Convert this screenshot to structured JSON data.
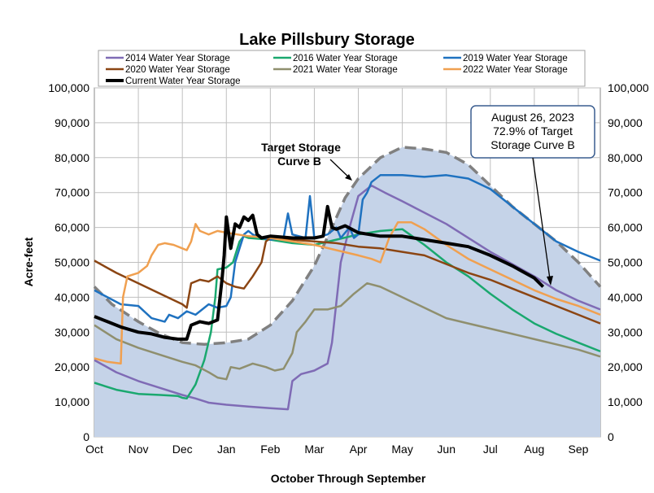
{
  "chart_data": {
    "type": "area",
    "title": "Lake Pillsbury Storage",
    "xlabel": "October Through September",
    "ylabel": "Acre-feet",
    "x_tick_labels": [
      "Oct",
      "Nov",
      "Dec",
      "Jan",
      "Feb",
      "Mar",
      "Apr",
      "May",
      "Jun",
      "Jul",
      "Aug",
      "Sep"
    ],
    "ylim": [
      0,
      100000
    ],
    "y_tick_labels": [
      "0",
      "10,000",
      "20,000",
      "30,000",
      "40,000",
      "50,000",
      "60,000",
      "70,000",
      "80,000",
      "90,000",
      "100,000"
    ],
    "grid": true,
    "legend_placement": "top",
    "colors": {
      "area_fill": "#c5d3e8",
      "target_curve": "#808080",
      "wy2014": "#7f6bb5",
      "wy2016": "#1aa86f",
      "wy2019": "#1f72c0",
      "wy2020": "#8b4513",
      "wy2021": "#8f8f6e",
      "wy2022": "#f0a050",
      "current": "#000000"
    },
    "target_curve": {
      "name": "Target Storage Curve B",
      "points": [
        [
          0,
          43000
        ],
        [
          0.4,
          38000
        ],
        [
          1.0,
          33000
        ],
        [
          1.5,
          29500
        ],
        [
          2.0,
          27000
        ],
        [
          2.5,
          26500
        ],
        [
          3.0,
          27000
        ],
        [
          3.5,
          28000
        ],
        [
          4.0,
          32000
        ],
        [
          4.5,
          39000
        ],
        [
          5.0,
          49000
        ],
        [
          5.4,
          60000
        ],
        [
          5.7,
          68500
        ],
        [
          6.0,
          74000
        ],
        [
          6.5,
          80000
        ],
        [
          7.0,
          83000
        ],
        [
          7.5,
          82500
        ],
        [
          8.0,
          81500
        ],
        [
          8.5,
          78000
        ],
        [
          9.0,
          72000
        ],
        [
          9.5,
          66000
        ],
        [
          10.0,
          61000
        ],
        [
          10.5,
          56000
        ],
        [
          11.0,
          50000
        ],
        [
          11.5,
          43000
        ]
      ]
    },
    "series": [
      {
        "name": "2014 Water Year Storage",
        "color_key": "wy2014",
        "width": 2.5,
        "points": [
          [
            0,
            22000
          ],
          [
            0.5,
            18500
          ],
          [
            1.0,
            16000
          ],
          [
            1.5,
            14000
          ],
          [
            2.0,
            12000
          ],
          [
            2.3,
            11000
          ],
          [
            2.6,
            9800
          ],
          [
            3.0,
            9200
          ],
          [
            3.5,
            8700
          ],
          [
            4.0,
            8200
          ],
          [
            4.4,
            7900
          ],
          [
            4.5,
            16000
          ],
          [
            4.7,
            18000
          ],
          [
            5.0,
            19000
          ],
          [
            5.3,
            21000
          ],
          [
            5.4,
            27000
          ],
          [
            5.6,
            50000
          ],
          [
            5.8,
            60000
          ],
          [
            6.0,
            69000
          ],
          [
            6.3,
            72000
          ],
          [
            6.6,
            70000
          ],
          [
            7.0,
            67500
          ],
          [
            8.0,
            61000
          ],
          [
            9.0,
            53000
          ],
          [
            10.0,
            46000
          ],
          [
            10.5,
            42000
          ],
          [
            11.0,
            39000
          ],
          [
            11.5,
            36500
          ]
        ]
      },
      {
        "name": "2016 Water Year Storage",
        "color_key": "wy2016",
        "width": 2.5,
        "points": [
          [
            0,
            15500
          ],
          [
            0.5,
            13500
          ],
          [
            1.0,
            12300
          ],
          [
            1.5,
            12000
          ],
          [
            1.9,
            11700
          ],
          [
            2.0,
            11200
          ],
          [
            2.1,
            11000
          ],
          [
            2.3,
            15000
          ],
          [
            2.5,
            22000
          ],
          [
            2.65,
            30000
          ],
          [
            2.75,
            40000
          ],
          [
            2.8,
            48000
          ],
          [
            3.0,
            48500
          ],
          [
            3.15,
            50000
          ],
          [
            3.3,
            56000
          ],
          [
            3.4,
            57500
          ],
          [
            3.5,
            57000
          ],
          [
            4.0,
            56500
          ],
          [
            4.5,
            55500
          ],
          [
            5.0,
            55000
          ],
          [
            5.5,
            56500
          ],
          [
            6.0,
            58000
          ],
          [
            6.5,
            59000
          ],
          [
            7.0,
            59500
          ],
          [
            7.5,
            55000
          ],
          [
            8.0,
            50000
          ],
          [
            8.5,
            46000
          ],
          [
            9.0,
            41000
          ],
          [
            9.5,
            36500
          ],
          [
            10.0,
            32500
          ],
          [
            10.5,
            29500
          ],
          [
            11.0,
            27000
          ],
          [
            11.5,
            24500
          ]
        ]
      },
      {
        "name": "2019 Water Year Storage",
        "color_key": "wy2019",
        "width": 2.5,
        "points": [
          [
            0,
            42000
          ],
          [
            0.3,
            40000
          ],
          [
            0.6,
            38000
          ],
          [
            1.0,
            37500
          ],
          [
            1.3,
            34000
          ],
          [
            1.6,
            33000
          ],
          [
            1.7,
            35000
          ],
          [
            1.9,
            34000
          ],
          [
            2.1,
            36000
          ],
          [
            2.3,
            35000
          ],
          [
            2.6,
            38000
          ],
          [
            2.8,
            37000
          ],
          [
            3.0,
            37500
          ],
          [
            3.1,
            40000
          ],
          [
            3.2,
            50000
          ],
          [
            3.3,
            54000
          ],
          [
            3.4,
            58000
          ],
          [
            3.5,
            59000
          ],
          [
            3.6,
            58000
          ],
          [
            3.8,
            57000
          ],
          [
            4.0,
            56500
          ],
          [
            4.3,
            57000
          ],
          [
            4.4,
            64000
          ],
          [
            4.5,
            58000
          ],
          [
            4.8,
            57000
          ],
          [
            4.9,
            69000
          ],
          [
            5.0,
            57000
          ],
          [
            5.3,
            58000
          ],
          [
            5.5,
            60000
          ],
          [
            5.6,
            57000
          ],
          [
            5.8,
            60000
          ],
          [
            5.9,
            57000
          ],
          [
            6.0,
            58000
          ],
          [
            6.1,
            68000
          ],
          [
            6.2,
            70000
          ],
          [
            6.3,
            73000
          ],
          [
            6.5,
            75000
          ],
          [
            7.0,
            75000
          ],
          [
            7.5,
            74500
          ],
          [
            8.0,
            75000
          ],
          [
            8.5,
            74000
          ],
          [
            9.0,
            71000
          ],
          [
            9.5,
            66000
          ],
          [
            10.0,
            61000
          ],
          [
            10.5,
            56000
          ],
          [
            11.0,
            53000
          ],
          [
            11.5,
            50500
          ]
        ]
      },
      {
        "name": "2020 Water Year Storage",
        "color_key": "wy2020",
        "width": 2.5,
        "points": [
          [
            0,
            50500
          ],
          [
            0.5,
            47000
          ],
          [
            1.0,
            44000
          ],
          [
            1.5,
            41000
          ],
          [
            2.0,
            38000
          ],
          [
            2.1,
            37000
          ],
          [
            2.2,
            44000
          ],
          [
            2.4,
            45000
          ],
          [
            2.6,
            44500
          ],
          [
            2.8,
            46000
          ],
          [
            3.0,
            44000
          ],
          [
            3.2,
            43000
          ],
          [
            3.4,
            42500
          ],
          [
            3.6,
            46000
          ],
          [
            3.8,
            50000
          ],
          [
            3.9,
            56000
          ],
          [
            4.0,
            57000
          ],
          [
            4.5,
            56500
          ],
          [
            5.0,
            56000
          ],
          [
            5.5,
            55500
          ],
          [
            6.0,
            54500
          ],
          [
            6.5,
            54000
          ],
          [
            7.0,
            53000
          ],
          [
            7.5,
            52000
          ],
          [
            8.0,
            49500
          ],
          [
            8.5,
            47000
          ],
          [
            9.0,
            45000
          ],
          [
            9.5,
            42500
          ],
          [
            10.0,
            40000
          ],
          [
            10.5,
            37500
          ],
          [
            11.0,
            35000
          ],
          [
            11.5,
            32500
          ]
        ]
      },
      {
        "name": "2021 Water Year Storage",
        "color_key": "wy2021",
        "width": 2.5,
        "points": [
          [
            0,
            32000
          ],
          [
            0.5,
            28000
          ],
          [
            1.0,
            25500
          ],
          [
            1.5,
            23500
          ],
          [
            2.0,
            21500
          ],
          [
            2.3,
            20500
          ],
          [
            2.6,
            18500
          ],
          [
            2.8,
            17000
          ],
          [
            3.0,
            16500
          ],
          [
            3.1,
            20000
          ],
          [
            3.3,
            19500
          ],
          [
            3.6,
            21000
          ],
          [
            3.9,
            20000
          ],
          [
            4.1,
            19000
          ],
          [
            4.3,
            19500
          ],
          [
            4.5,
            24000
          ],
          [
            4.6,
            30000
          ],
          [
            4.8,
            33000
          ],
          [
            5.0,
            36500
          ],
          [
            5.3,
            36500
          ],
          [
            5.6,
            37500
          ],
          [
            5.9,
            41000
          ],
          [
            6.0,
            42000
          ],
          [
            6.2,
            44000
          ],
          [
            6.5,
            43000
          ],
          [
            7.0,
            40000
          ],
          [
            7.5,
            37000
          ],
          [
            8.0,
            34000
          ],
          [
            8.5,
            32500
          ],
          [
            9.0,
            31000
          ],
          [
            9.5,
            29500
          ],
          [
            10.0,
            28000
          ],
          [
            10.5,
            26500
          ],
          [
            11.0,
            25000
          ],
          [
            11.5,
            23000
          ]
        ]
      },
      {
        "name": "2022 Water Year Storage",
        "color_key": "wy2022",
        "width": 2.5,
        "points": [
          [
            0,
            22500
          ],
          [
            0.3,
            21500
          ],
          [
            0.6,
            21000
          ],
          [
            0.65,
            40000
          ],
          [
            0.75,
            46000
          ],
          [
            1.0,
            47000
          ],
          [
            1.2,
            49000
          ],
          [
            1.3,
            52000
          ],
          [
            1.45,
            55000
          ],
          [
            1.6,
            55500
          ],
          [
            1.8,
            55000
          ],
          [
            2.0,
            54000
          ],
          [
            2.1,
            53500
          ],
          [
            2.2,
            56000
          ],
          [
            2.3,
            61000
          ],
          [
            2.4,
            59000
          ],
          [
            2.6,
            58000
          ],
          [
            2.8,
            59000
          ],
          [
            3.0,
            58500
          ],
          [
            3.5,
            57500
          ],
          [
            4.0,
            57000
          ],
          [
            4.5,
            56000
          ],
          [
            5.0,
            55000
          ],
          [
            5.5,
            53500
          ],
          [
            6.0,
            52000
          ],
          [
            6.3,
            51000
          ],
          [
            6.5,
            50000
          ],
          [
            6.7,
            57000
          ],
          [
            6.9,
            61500
          ],
          [
            7.2,
            61500
          ],
          [
            7.5,
            59500
          ],
          [
            8.0,
            55000
          ],
          [
            8.5,
            51000
          ],
          [
            9.0,
            48000
          ],
          [
            9.5,
            45000
          ],
          [
            10.0,
            42000
          ],
          [
            10.5,
            39500
          ],
          [
            11.0,
            37500
          ],
          [
            11.5,
            35000
          ]
        ]
      },
      {
        "name": "Current Water Year Storage",
        "color_key": "current",
        "width": 4,
        "points": [
          [
            0,
            34500
          ],
          [
            0.3,
            33000
          ],
          [
            0.6,
            31500
          ],
          [
            1.0,
            30000
          ],
          [
            1.3,
            29500
          ],
          [
            1.6,
            28500
          ],
          [
            1.9,
            28000
          ],
          [
            2.1,
            28000
          ],
          [
            2.2,
            32000
          ],
          [
            2.4,
            33000
          ],
          [
            2.6,
            32500
          ],
          [
            2.8,
            33500
          ],
          [
            2.9,
            45000
          ],
          [
            2.95,
            52000
          ],
          [
            3.0,
            63000
          ],
          [
            3.1,
            54000
          ],
          [
            3.2,
            61000
          ],
          [
            3.3,
            60000
          ],
          [
            3.4,
            63000
          ],
          [
            3.5,
            62000
          ],
          [
            3.6,
            63500
          ],
          [
            3.7,
            58000
          ],
          [
            3.8,
            57000
          ],
          [
            4.0,
            57500
          ],
          [
            4.5,
            57000
          ],
          [
            5.0,
            57000
          ],
          [
            5.2,
            57500
          ],
          [
            5.3,
            66000
          ],
          [
            5.4,
            60000
          ],
          [
            5.5,
            59500
          ],
          [
            5.7,
            60500
          ],
          [
            6.0,
            58500
          ],
          [
            6.5,
            57500
          ],
          [
            7.0,
            57500
          ],
          [
            7.5,
            56500
          ],
          [
            8.0,
            55500
          ],
          [
            8.5,
            54500
          ],
          [
            9.0,
            52000
          ],
          [
            9.5,
            49000
          ],
          [
            10.0,
            45500
          ],
          [
            10.2,
            43000
          ]
        ]
      }
    ]
  },
  "annotations": {
    "target_label_line1": "Target Storage",
    "target_label_line2": "Curve B",
    "callout_line1": "August 26, 2023",
    "callout_line2": "72.9% of Target",
    "callout_line3": "Storage Curve B"
  }
}
